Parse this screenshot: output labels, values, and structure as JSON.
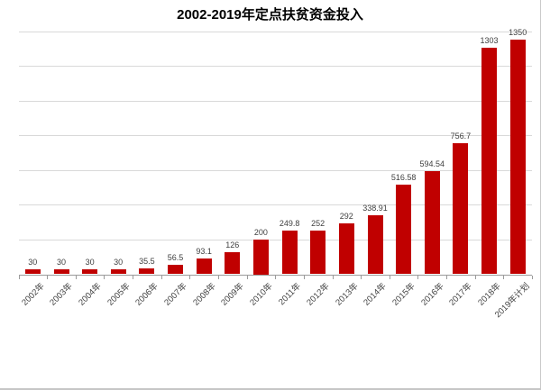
{
  "chart_data": {
    "type": "bar",
    "title": "2002-2019年定点扶贫资金投入",
    "categories": [
      "2002年",
      "2003年",
      "2004年",
      "2005年",
      "2006年",
      "2007年",
      "2008年",
      "2009年",
      "2010年",
      "2011年",
      "2012年",
      "2013年",
      "2014年",
      "2015年",
      "2016年",
      "2017年",
      "2018年",
      "2019年计划"
    ],
    "values": [
      30,
      30,
      30,
      30,
      35.5,
      56.5,
      93.1,
      126,
      200,
      249.8,
      252,
      292,
      338.91,
      516.58,
      594.54,
      756.7,
      1303,
      1350
    ],
    "data_labels": [
      "30",
      "30",
      "30",
      "30",
      "35.5",
      "56.5",
      "93.1",
      "126",
      "200",
      "249.8",
      "252",
      "292",
      "338.91",
      "516.58",
      "594.54",
      "756.7",
      "1303",
      "1350"
    ],
    "xlabel": "",
    "ylabel": "",
    "ylim": [
      0,
      1400
    ],
    "gridline_step": 200,
    "grid": true,
    "legend": "none",
    "y_axis_labels_visible": false,
    "colors": {
      "bar": "#c00000",
      "gridline": "#d9d9d9",
      "axis": "#9b9b9b",
      "data_label": "#404040",
      "title": "#000000",
      "background": "#ffffff"
    }
  }
}
